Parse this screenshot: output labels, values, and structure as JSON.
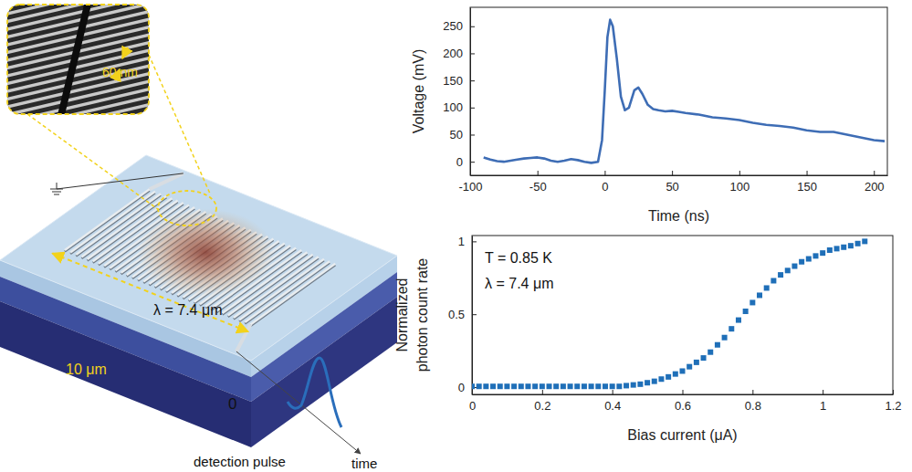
{
  "chart_data": [
    {
      "type": "line",
      "x_label": "Time (ns)",
      "y_label": [
        "Voltage (mV)"
      ],
      "x": [
        -90,
        -85,
        -80,
        -75,
        -70,
        -65,
        -60,
        -55,
        -50,
        -45,
        -40,
        -35,
        -30,
        -25,
        -20,
        -15,
        -10,
        -5,
        -2,
        0,
        2,
        4,
        6,
        9,
        12,
        15,
        18,
        22,
        25,
        28,
        32,
        36,
        40,
        45,
        50,
        55,
        60,
        70,
        80,
        90,
        100,
        110,
        120,
        130,
        140,
        150,
        160,
        170,
        180,
        190,
        200,
        208
      ],
      "values": [
        8,
        4,
        1,
        0,
        2,
        4,
        6,
        7,
        8,
        6,
        2,
        0,
        2,
        5,
        3,
        0,
        -2,
        0,
        40,
        130,
        230,
        262,
        250,
        190,
        120,
        95,
        100,
        132,
        137,
        125,
        105,
        97,
        95,
        93,
        94,
        92,
        90,
        87,
        82,
        80,
        77,
        72,
        68,
        66,
        63,
        58,
        55,
        55,
        50,
        45,
        40,
        38
      ],
      "xlim": [
        -100,
        210
      ],
      "ylim": [
        -25,
        285
      ],
      "xticks": [
        -100,
        -50,
        0,
        50,
        100,
        150,
        200
      ],
      "yticks": [
        0,
        50,
        100,
        150,
        200,
        250
      ],
      "color": "#3e6db5",
      "line_style": "solid"
    },
    {
      "type": "scatter",
      "x_label": "Bias current (μA)",
      "y_label": [
        "Normalized",
        "photon count rate"
      ],
      "annotations": [
        "T = 0.85 K",
        "λ = 7.4 μm"
      ],
      "x": [
        0,
        0.02,
        0.04,
        0.06,
        0.08,
        0.1,
        0.12,
        0.14,
        0.16,
        0.18,
        0.2,
        0.22,
        0.24,
        0.26,
        0.28,
        0.3,
        0.32,
        0.34,
        0.36,
        0.38,
        0.4,
        0.42,
        0.44,
        0.46,
        0.48,
        0.5,
        0.52,
        0.54,
        0.56,
        0.58,
        0.6,
        0.62,
        0.64,
        0.66,
        0.68,
        0.7,
        0.72,
        0.74,
        0.76,
        0.78,
        0.8,
        0.82,
        0.84,
        0.86,
        0.88,
        0.9,
        0.92,
        0.94,
        0.96,
        0.98,
        1,
        1.02,
        1.04,
        1.06,
        1.08,
        1.1,
        1.12
      ],
      "values": [
        0.005,
        0.005,
        0.005,
        0.005,
        0.005,
        0.005,
        0.005,
        0.005,
        0.005,
        0.005,
        0.005,
        0.005,
        0.005,
        0.005,
        0.005,
        0.005,
        0.005,
        0.005,
        0.005,
        0.005,
        0.005,
        0.005,
        0.01,
        0.015,
        0.02,
        0.03,
        0.04,
        0.055,
        0.07,
        0.09,
        0.11,
        0.14,
        0.17,
        0.2,
        0.24,
        0.29,
        0.34,
        0.4,
        0.46,
        0.52,
        0.58,
        0.63,
        0.68,
        0.73,
        0.77,
        0.8,
        0.83,
        0.86,
        0.88,
        0.9,
        0.92,
        0.94,
        0.95,
        0.96,
        0.97,
        0.985,
        1.0
      ],
      "xlim": [
        0,
        1.2
      ],
      "ylim": [
        -0.05,
        1.04
      ],
      "xticks": [
        0,
        0.2,
        0.4,
        0.6,
        0.8,
        1,
        1.2
      ],
      "yticks": [
        0,
        0.5,
        1
      ],
      "color": "#1f6fb8",
      "marker": "square"
    }
  ],
  "diagram": {
    "inset_label": "60 nm",
    "beam_label": "λ = 7.4 μm",
    "width_label": "10 μm",
    "origin_label": "0",
    "pulse_label": "detection pulse",
    "axis_label": "time"
  }
}
